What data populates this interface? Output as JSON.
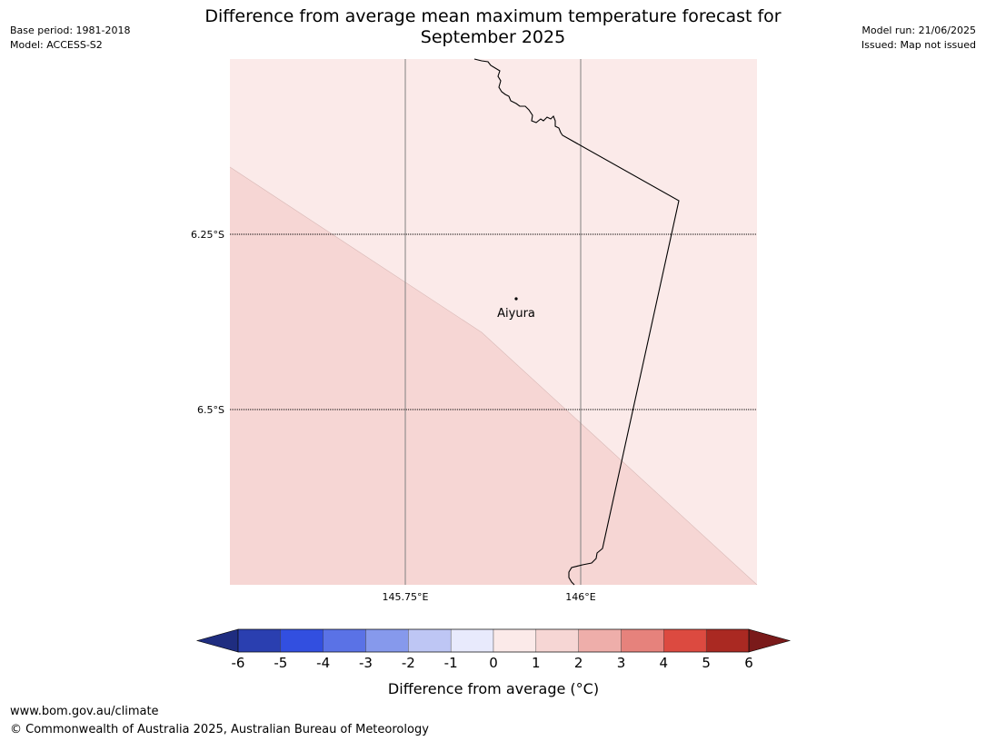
{
  "header": {
    "base_period": "Base period: 1981-2018",
    "model": "Model: ACCESS-S2",
    "model_run": "Model run: 21/06/2025",
    "issued": "Issued: Map not issued",
    "title_line1": "Difference from average mean maximum temperature forecast for",
    "title_line2": "September 2025"
  },
  "map": {
    "latitude_labels": [
      "6.25°S",
      "6.5°S"
    ],
    "longitude_labels": [
      "145.75°E",
      "146°E"
    ],
    "place": "Aiyura",
    "colors": {
      "zone_1_to_2": "#f6d6d4",
      "zone_0_to_1": "#fbeae9",
      "border": "#000000",
      "meridian": "#808080"
    }
  },
  "colorbar": {
    "label": "Difference from average (°C)",
    "ticks": [
      "-6",
      "-5",
      "-4",
      "-3",
      "-2",
      "-1",
      "0",
      "1",
      "2",
      "3",
      "4",
      "5",
      "6"
    ],
    "low_extend_color": "#1f2d80",
    "high_extend_color": "#7a1a1a",
    "colors": [
      "#2a3fb0",
      "#324fe0",
      "#5a72e6",
      "#8699ec",
      "#bec6f4",
      "#e8eafc",
      "#fbeae9",
      "#f6d6d4",
      "#eeaeaa",
      "#e6827c",
      "#dc4a40",
      "#aa2922"
    ]
  },
  "footer": {
    "url": "www.bom.gov.au/climate",
    "copyright": "© Commonwealth of Australia 2025, Australian Bureau of Meteorology"
  }
}
